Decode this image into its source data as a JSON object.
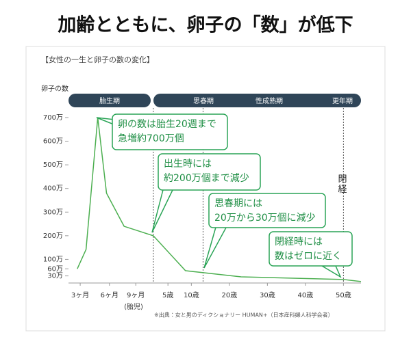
{
  "chart_data": {
    "type": "line",
    "title": "加齢とともに、卵子の「数」が低下",
    "subtitle": "【女性の一生と卵子の数の変化】",
    "y_label": "卵子の数",
    "phases": [
      "胎生期",
      "思春期",
      "性成熟期",
      "更年期"
    ],
    "fetus_label": "(胎児)",
    "menopause_label": "閉経",
    "source": "※出典：女と男のディクショナリー HUMAN+（日本産科婦人科学会者）",
    "color": "#4caf50",
    "x": [
      3,
      6,
      10,
      13,
      19,
      29,
      40,
      59,
      94,
      100
    ],
    "values": [
      60,
      142,
      700,
      380,
      240,
      200,
      52,
      26,
      15,
      6
    ],
    "xlim": [
      0,
      100
    ],
    "ylim": [
      0,
      700
    ],
    "xticks": [
      {
        "value": 4,
        "label": "3ヶ月"
      },
      {
        "value": 14,
        "label": "6ヶ月"
      },
      {
        "value": 23,
        "label": "9ヶ月"
      },
      {
        "value": 34,
        "label": "5歳"
      },
      {
        "value": 42,
        "label": "10歳"
      },
      {
        "value": 55,
        "label": "20歳"
      },
      {
        "value": 68,
        "label": "30歳"
      },
      {
        "value": 81,
        "label": "40歳"
      },
      {
        "value": 94,
        "label": "50歳"
      }
    ],
    "yticks": [
      {
        "value": 700,
        "label": "700万"
      },
      {
        "value": 600,
        "label": "600万"
      },
      {
        "value": 500,
        "label": "500万"
      },
      {
        "value": 400,
        "label": "400万"
      },
      {
        "value": 300,
        "label": "300万"
      },
      {
        "value": 200,
        "label": "200万"
      },
      {
        "value": 100,
        "label": "100万"
      },
      {
        "value": 60,
        "label": "60万"
      },
      {
        "value": 30,
        "label": "30万"
      }
    ],
    "vlines": [
      29,
      46,
      94
    ],
    "annotations": [
      {
        "lines": [
          "卵の数は胎生20週まで",
          "急増約700万個"
        ]
      },
      {
        "lines": [
          "出生時には",
          "約200万個まで減少"
        ]
      },
      {
        "lines": [
          "思春期には",
          "20万から30万個に減少"
        ]
      },
      {
        "lines": [
          "閉経時には",
          "数はゼロに近く"
        ]
      }
    ]
  }
}
